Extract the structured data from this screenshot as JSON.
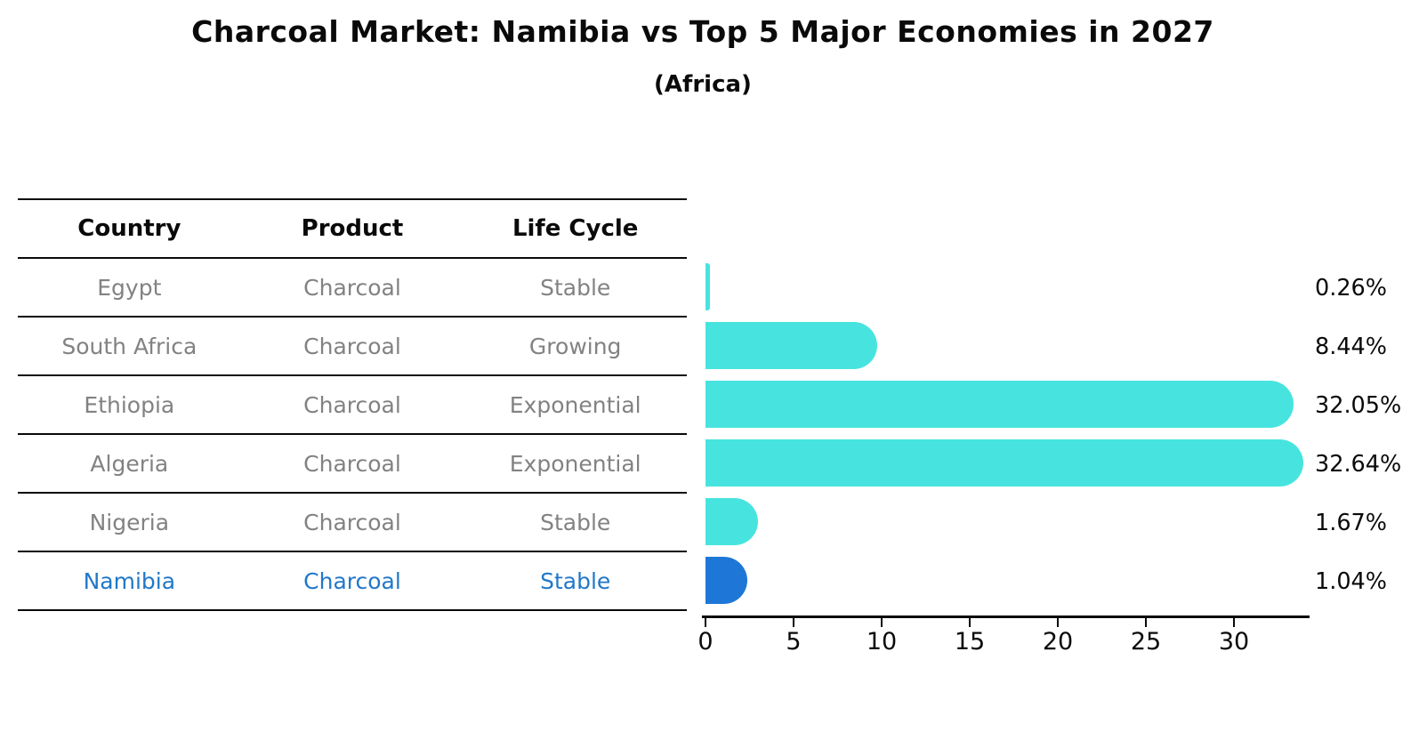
{
  "title": "Charcoal Market: Namibia vs Top 5 Major Economies in 2027",
  "subtitle": "(Africa)",
  "table": {
    "headers": [
      "Country",
      "Product",
      "Life Cycle"
    ],
    "rows": [
      {
        "country": "Egypt",
        "product": "Charcoal",
        "life_cycle": "Stable",
        "highlight": false
      },
      {
        "country": "South Africa",
        "product": "Charcoal",
        "life_cycle": "Growing",
        "highlight": false
      },
      {
        "country": "Ethiopia",
        "product": "Charcoal",
        "life_cycle": "Exponential",
        "highlight": false
      },
      {
        "country": "Algeria",
        "product": "Charcoal",
        "life_cycle": "Exponential",
        "highlight": false
      },
      {
        "country": "Nigeria",
        "product": "Charcoal",
        "life_cycle": "Stable",
        "highlight": false
      },
      {
        "country": "Namibia",
        "product": "Charcoal",
        "life_cycle": "Stable",
        "highlight": true
      }
    ]
  },
  "chart_data": {
    "type": "bar",
    "orientation": "horizontal",
    "title": "Charcoal Market: Namibia vs Top 5 Major Economies in 2027",
    "subtitle": "(Africa)",
    "categories": [
      "Egypt",
      "South Africa",
      "Ethiopia",
      "Algeria",
      "Nigeria",
      "Namibia"
    ],
    "values": [
      0.26,
      8.44,
      32.05,
      32.64,
      1.67,
      1.04
    ],
    "value_labels": [
      "0.26%",
      "8.44%",
      "32.05%",
      "32.64%",
      "1.67%",
      "1.04%"
    ],
    "xticks": [
      0,
      5,
      10,
      15,
      20,
      25,
      30
    ],
    "xlim": [
      0,
      34.3
    ],
    "grid": false,
    "legend": false,
    "highlight_index": 5,
    "colors": {
      "bar": "#47E4DF",
      "highlight_bar": "#1E77D6",
      "highlight_text": "#2178C8",
      "row_text": "#828282",
      "header_text": "#0a0a0a",
      "axis": "#0a0a0a"
    }
  }
}
